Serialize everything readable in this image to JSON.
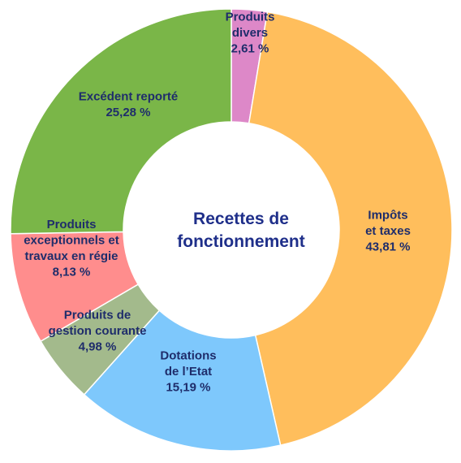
{
  "chart_data": {
    "type": "pie",
    "hole": true,
    "center_title": [
      "Recettes de",
      "fonctionnement"
    ],
    "slices": [
      {
        "label": [
          "Produits",
          "divers",
          "2,61 %"
        ],
        "value": 2.61,
        "color": "#dd88c8"
      },
      {
        "label": [
          "Impôts",
          "et taxes",
          "43,81 %"
        ],
        "value": 43.81,
        "color": "#ffbe5c"
      },
      {
        "label": [
          "Dotations",
          "de l’Etat",
          "15,19 %"
        ],
        "value": 15.19,
        "color": "#7ec8fc"
      },
      {
        "label": [
          "Produits de",
          "gestion courante",
          "4,98 %"
        ],
        "value": 4.98,
        "color": "#a3ba8c"
      },
      {
        "label": [
          "Produits",
          "exceptionnels et",
          "travaux en régie",
          "8,13 %"
        ],
        "value": 8.13,
        "color": "#ff8d8d"
      },
      {
        "label": [
          "Excédent reporté",
          "25,28 %"
        ],
        "value": 25.28,
        "color": "#7ab648"
      }
    ]
  }
}
